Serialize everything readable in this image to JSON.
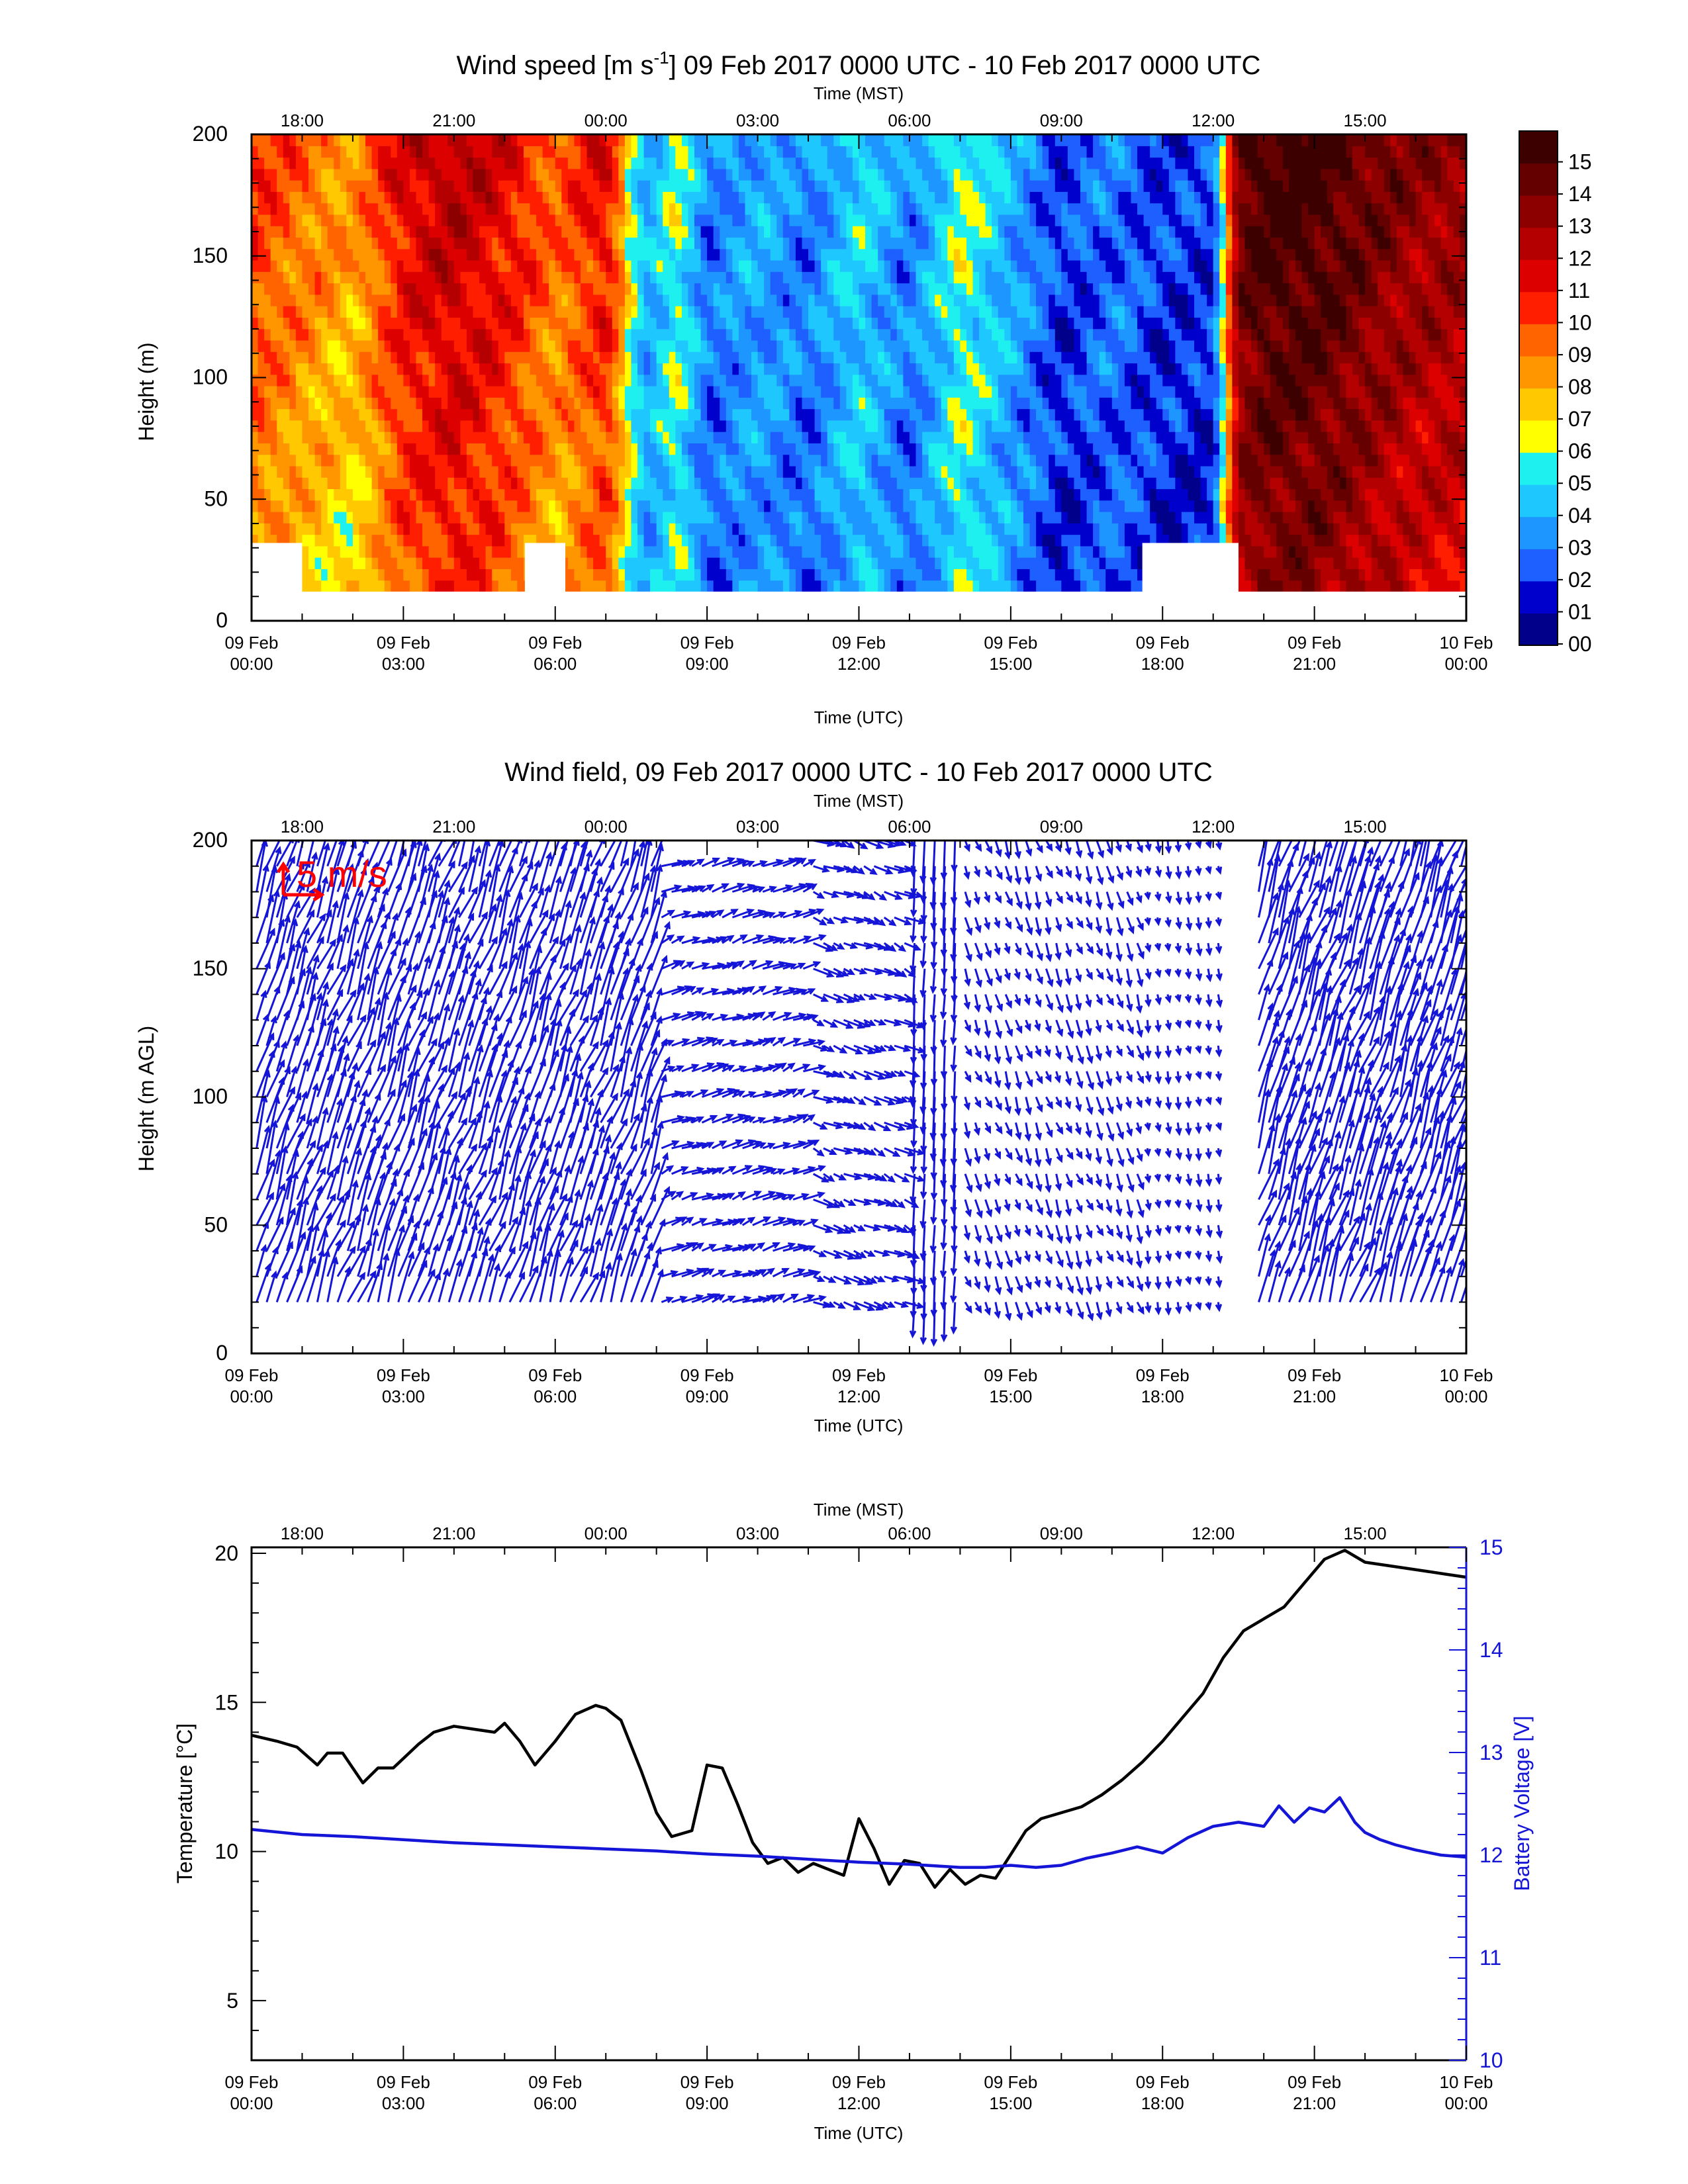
{
  "chart_data": [
    {
      "type": "heatmap",
      "title": "Wind speed [m s",
      "title_sup": "-1",
      "title_rest": "] 09 Feb 2017 0000 UTC - 10 Feb 2017 0000 UTC",
      "xlabel": "Time (UTC)",
      "x2label": "Time (MST)",
      "ylabel": "Height (m)",
      "xlim": [
        0,
        24
      ],
      "ylim": [
        0,
        200
      ],
      "yticks": [
        "0",
        "50",
        "100",
        "150",
        "200"
      ],
      "xticks_bottom": [
        [
          "09 Feb",
          "00:00"
        ],
        [
          "09 Feb",
          "03:00"
        ],
        [
          "09 Feb",
          "06:00"
        ],
        [
          "09 Feb",
          "09:00"
        ],
        [
          "09 Feb",
          "12:00"
        ],
        [
          "09 Feb",
          "15:00"
        ],
        [
          "09 Feb",
          "18:00"
        ],
        [
          "09 Feb",
          "21:00"
        ],
        [
          "10 Feb",
          "00:00"
        ]
      ],
      "xticks_top": [
        "18:00",
        "21:00",
        "00:00",
        "03:00",
        "06:00",
        "09:00",
        "12:00",
        "15:00"
      ],
      "colorbar_labels": [
        "00",
        "01",
        "02",
        "03",
        "04",
        "05",
        "06",
        "07",
        "08",
        "09",
        "10",
        "11",
        "12",
        "13",
        "14",
        "15"
      ],
      "colorbar_colors": [
        "#00008b",
        "#0000cd",
        "#1e5fff",
        "#1e96ff",
        "#1ec8ff",
        "#1ef0f0",
        "#ffff00",
        "#ffc800",
        "#ff9600",
        "#ff6400",
        "#ff1e00",
        "#dc0000",
        "#b40000",
        "#8c0000",
        "#640000",
        "#3c0000"
      ],
      "time_hours": [
        0,
        1,
        2,
        3,
        4,
        5,
        6,
        7,
        7.8,
        8.4,
        9,
        10,
        11,
        12,
        13,
        14,
        15,
        16,
        17,
        18,
        19,
        19.5,
        20,
        21,
        22,
        23,
        24
      ],
      "column_speed_ms": [
        8,
        7,
        6,
        9,
        10,
        9,
        7,
        9,
        3,
        5,
        2,
        3,
        2,
        4,
        2,
        5,
        3,
        1,
        2,
        1,
        1,
        12,
        13,
        13,
        12,
        11,
        11
      ]
    },
    {
      "type": "scatter",
      "subtype": "vector-field",
      "title": "Wind field, 09 Feb 2017 0000 UTC - 10 Feb 2017 0000 UTC",
      "xlabel": "Time (UTC)",
      "x2label": "Time (MST)",
      "ylabel": "Height (m AGL)",
      "xlim": [
        0,
        24
      ],
      "ylim": [
        0,
        200
      ],
      "reference_vector_label": "5 m/s",
      "reference_vector_ms": 5,
      "arrow_color": "#1515d8",
      "regime_blocks": [
        {
          "t0": 0,
          "t1": 8,
          "u": 1.8,
          "v": 5.5
        },
        {
          "t0": 8,
          "t1": 11,
          "u": 2.2,
          "v": 0.8
        },
        {
          "t0": 11,
          "t1": 13,
          "u": 2.0,
          "v": -0.8
        },
        {
          "t0": 13,
          "t1": 14,
          "u": -0.2,
          "v": -4.5
        },
        {
          "t0": 14,
          "t1": 17.5,
          "u": 0.6,
          "v": -1.8
        },
        {
          "t0": 17.5,
          "t1": 19.2,
          "u": 0.2,
          "v": -1.2
        },
        {
          "t0": 19.2,
          "t1": 19.8,
          "u": 0.0,
          "v": 0.0
        },
        {
          "t0": 19.8,
          "t1": 24,
          "u": 2.0,
          "v": 6.5
        }
      ]
    },
    {
      "type": "line",
      "xlabel": "Time (UTC)",
      "x2label": "Time (MST)",
      "ylabel": "Temperature [°C]",
      "y2label": "Battery Voltage [V]",
      "xlim": [
        0,
        24
      ],
      "ylim": [
        3,
        20.2
      ],
      "y2lim": [
        10,
        15
      ],
      "yticks": [
        "5",
        "10",
        "15",
        "20"
      ],
      "y2ticks": [
        "10",
        "11",
        "12",
        "13",
        "14",
        "15"
      ],
      "series": [
        {
          "axis": "left",
          "color": "#000000",
          "x": [
            0,
            0.5,
            0.9,
            1.3,
            1.5,
            1.8,
            2.2,
            2.5,
            2.8,
            3.3,
            3.6,
            4.0,
            4.4,
            4.8,
            5.0,
            5.3,
            5.6,
            6.0,
            6.4,
            6.8,
            7.0,
            7.3,
            7.7,
            8.0,
            8.3,
            8.7,
            9.0,
            9.3,
            9.6,
            9.9,
            10.2,
            10.5,
            10.8,
            11.1,
            11.4,
            11.7,
            12.0,
            12.3,
            12.6,
            12.9,
            13.2,
            13.5,
            13.8,
            14.1,
            14.4,
            14.7,
            15.0,
            15.3,
            15.6,
            16.0,
            16.4,
            16.8,
            17.2,
            17.6,
            18.0,
            18.4,
            18.8,
            19.2,
            19.6,
            20.0,
            20.4,
            20.8,
            21.2,
            21.6,
            22.0,
            22.4,
            22.8,
            23.2,
            23.6,
            24.0
          ],
          "y": [
            13.9,
            13.7,
            13.5,
            12.9,
            13.3,
            13.3,
            12.3,
            12.8,
            12.8,
            13.6,
            14.0,
            14.2,
            14.1,
            14.0,
            14.3,
            13.7,
            12.9,
            13.7,
            14.6,
            14.9,
            14.8,
            14.4,
            12.7,
            11.3,
            10.5,
            10.7,
            12.9,
            12.8,
            11.6,
            10.3,
            9.6,
            9.8,
            9.3,
            9.6,
            9.4,
            9.2,
            11.1,
            10.1,
            8.9,
            9.7,
            9.6,
            8.8,
            9.4,
            8.9,
            9.2,
            9.1,
            9.9,
            10.7,
            11.1,
            11.3,
            11.5,
            11.9,
            12.4,
            13.0,
            13.7,
            14.5,
            15.3,
            16.5,
            17.4,
            17.8,
            18.2,
            19.0,
            19.8,
            20.1,
            19.7,
            19.6,
            19.5,
            19.4,
            19.3,
            19.2
          ]
        },
        {
          "axis": "right",
          "color": "#1515d8",
          "x": [
            0,
            1,
            2,
            3,
            4,
            5,
            6,
            7,
            8,
            9,
            10,
            11,
            12,
            13,
            14,
            14.5,
            15,
            15.5,
            16,
            16.5,
            17,
            17.5,
            18,
            18.5,
            19,
            19.5,
            20,
            20.3,
            20.6,
            20.9,
            21.2,
            21.5,
            21.8,
            22.0,
            22.3,
            22.6,
            23.0,
            23.5,
            24.0
          ],
          "y": [
            12.25,
            12.2,
            12.18,
            12.15,
            12.12,
            12.1,
            12.08,
            12.06,
            12.04,
            12.01,
            11.99,
            11.96,
            11.93,
            11.91,
            11.88,
            11.88,
            11.9,
            11.88,
            11.9,
            11.97,
            12.02,
            12.08,
            12.02,
            12.17,
            12.28,
            12.32,
            12.28,
            12.48,
            12.32,
            12.46,
            12.42,
            12.56,
            12.32,
            12.22,
            12.15,
            12.1,
            12.05,
            12.0,
            11.98
          ]
        }
      ]
    }
  ]
}
